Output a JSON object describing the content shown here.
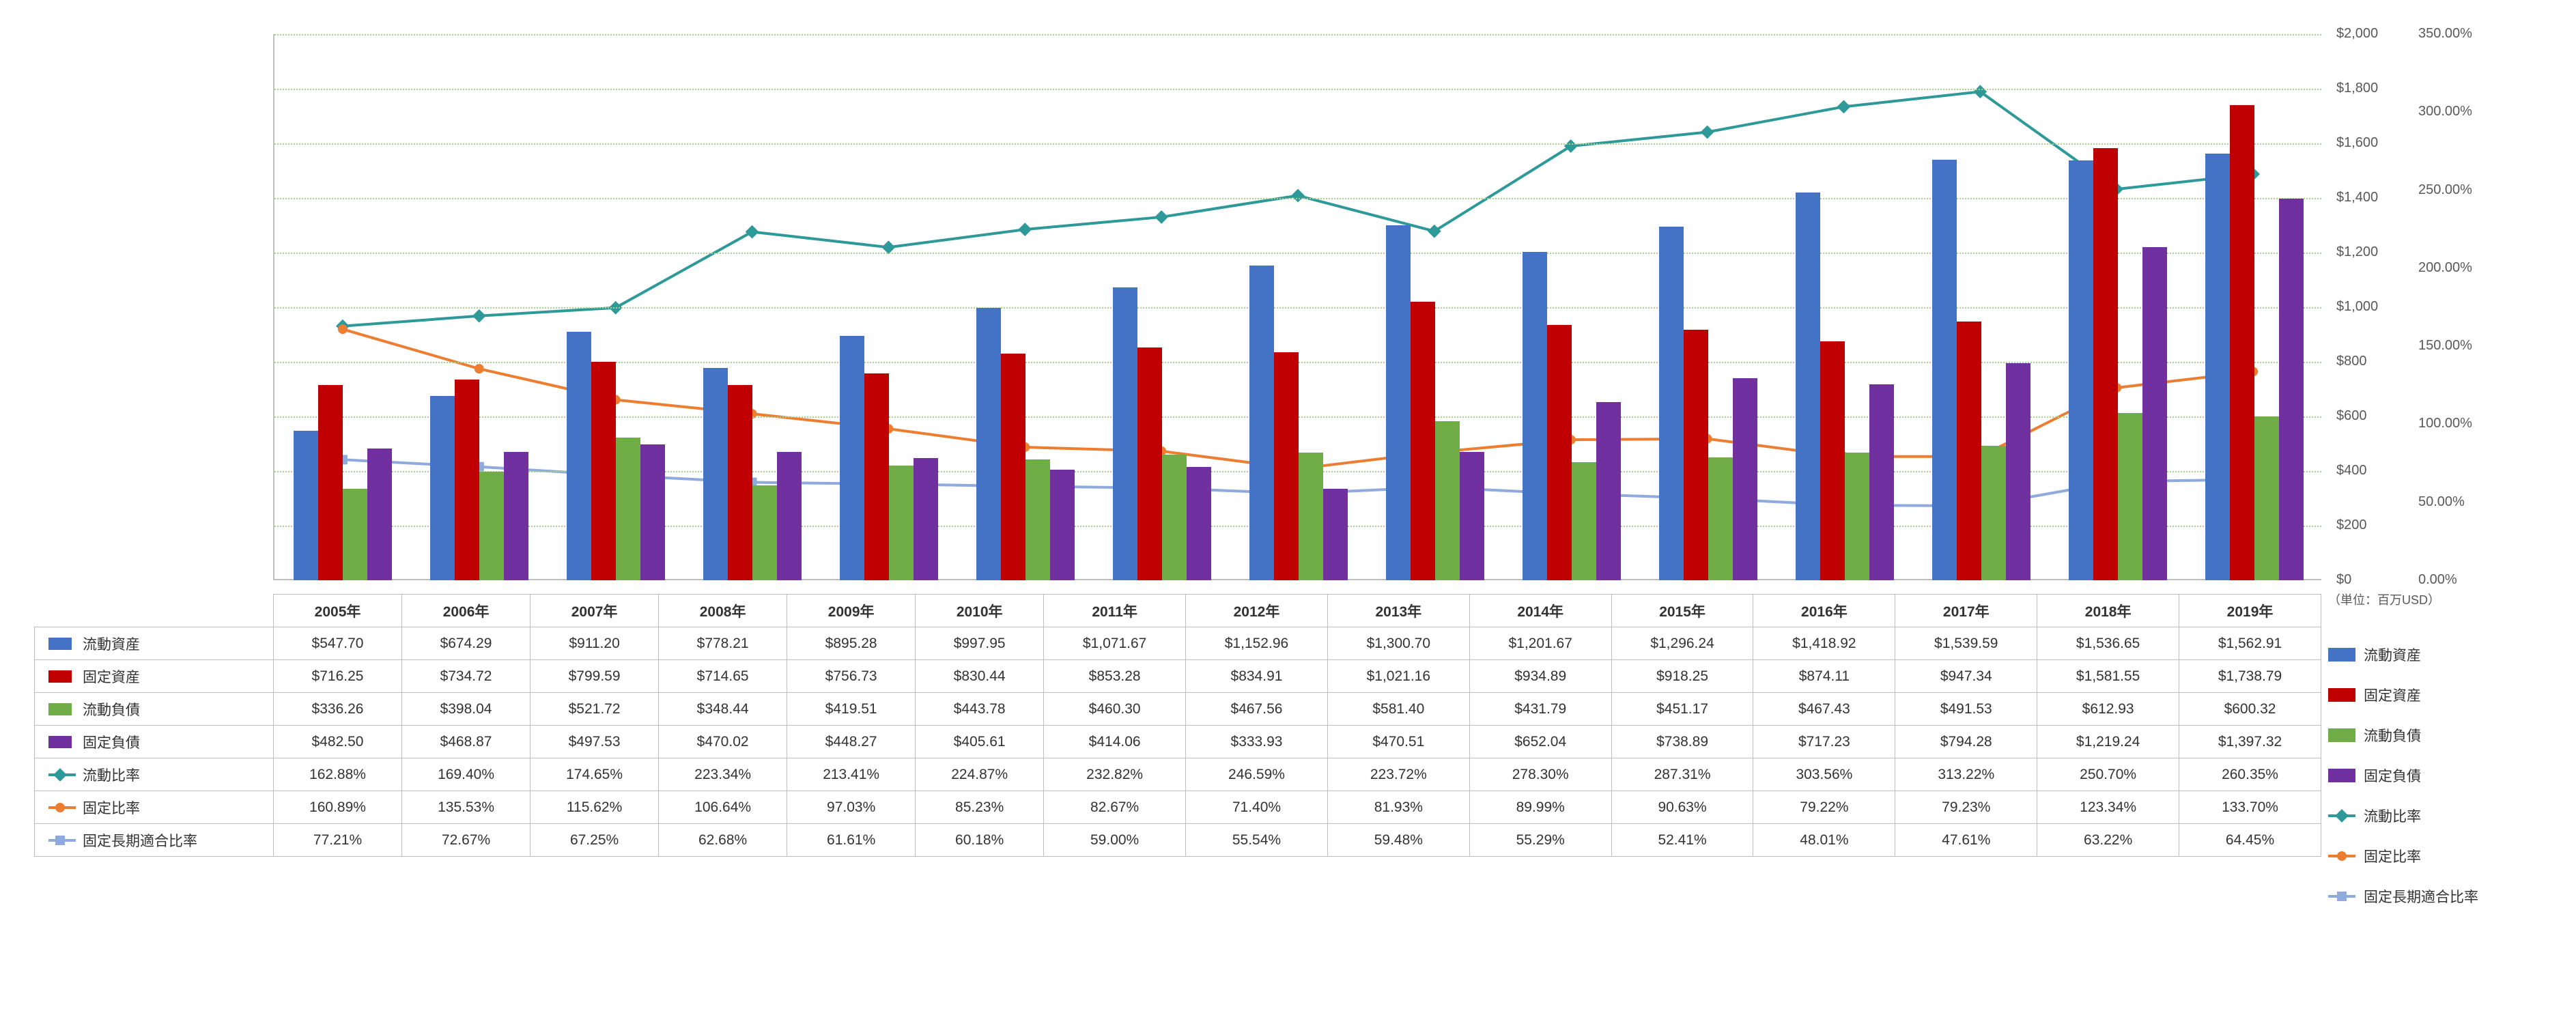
{
  "categories": [
    "2005年",
    "2006年",
    "2007年",
    "2008年",
    "2009年",
    "2010年",
    "2011年",
    "2012年",
    "2013年",
    "2014年",
    "2015年",
    "2016年",
    "2017年",
    "2018年",
    "2019年"
  ],
  "unit_label": "（単位：百万USD）",
  "yleft": {
    "min": 0,
    "max": 2000,
    "step": 200,
    "ticks": [
      "$0",
      "$200",
      "$400",
      "$600",
      "$800",
      "$1,000",
      "$1,200",
      "$1,400",
      "$1,600",
      "$1,800",
      "$2,000"
    ]
  },
  "yright": {
    "min": 0,
    "max": 350,
    "step": 50,
    "ticks": [
      "0.00%",
      "50.00%",
      "100.00%",
      "150.00%",
      "200.00%",
      "250.00%",
      "300.00%",
      "350.00%"
    ]
  },
  "series_bars": [
    {
      "key": "current_assets",
      "label": "流動資産",
      "color": "#4472c4",
      "display": [
        "$547.70",
        "$674.29",
        "$911.20",
        "$778.21",
        "$895.28",
        "$997.95",
        "$1,071.67",
        "$1,152.96",
        "$1,300.70",
        "$1,201.67",
        "$1,296.24",
        "$1,418.92",
        "$1,539.59",
        "$1,536.65",
        "$1,562.91"
      ],
      "values": [
        547.7,
        674.29,
        911.2,
        778.21,
        895.28,
        997.95,
        1071.67,
        1152.96,
        1300.7,
        1201.67,
        1296.24,
        1418.92,
        1539.59,
        1536.65,
        1562.91
      ]
    },
    {
      "key": "fixed_assets",
      "label": "固定資産",
      "color": "#c00000",
      "display": [
        "$716.25",
        "$734.72",
        "$799.59",
        "$714.65",
        "$756.73",
        "$830.44",
        "$853.28",
        "$834.91",
        "$1,021.16",
        "$934.89",
        "$918.25",
        "$874.11",
        "$947.34",
        "$1,581.55",
        "$1,738.79"
      ],
      "values": [
        716.25,
        734.72,
        799.59,
        714.65,
        756.73,
        830.44,
        853.28,
        834.91,
        1021.16,
        934.89,
        918.25,
        874.11,
        947.34,
        1581.55,
        1738.79
      ]
    },
    {
      "key": "current_liab",
      "label": "流動負債",
      "color": "#70ad47",
      "display": [
        "$336.26",
        "$398.04",
        "$521.72",
        "$348.44",
        "$419.51",
        "$443.78",
        "$460.30",
        "$467.56",
        "$581.40",
        "$431.79",
        "$451.17",
        "$467.43",
        "$491.53",
        "$612.93",
        "$600.32"
      ],
      "values": [
        336.26,
        398.04,
        521.72,
        348.44,
        419.51,
        443.78,
        460.3,
        467.56,
        581.4,
        431.79,
        451.17,
        467.43,
        491.53,
        612.93,
        600.32
      ]
    },
    {
      "key": "fixed_liab",
      "label": "固定負債",
      "color": "#7030a0",
      "display": [
        "$482.50",
        "$468.87",
        "$497.53",
        "$470.02",
        "$448.27",
        "$405.61",
        "$414.06",
        "$333.93",
        "$470.51",
        "$652.04",
        "$738.89",
        "$717.23",
        "$794.28",
        "$1,219.24",
        "$1,397.32"
      ],
      "values": [
        482.5,
        468.87,
        497.53,
        470.02,
        448.27,
        405.61,
        414.06,
        333.93,
        470.51,
        652.04,
        738.89,
        717.23,
        794.28,
        1219.24,
        1397.32
      ]
    }
  ],
  "series_lines": [
    {
      "key": "current_ratio",
      "label": "流動比率",
      "color": "#2e9999",
      "marker": "diamond",
      "display": [
        "162.88%",
        "169.40%",
        "174.65%",
        "223.34%",
        "213.41%",
        "224.87%",
        "232.82%",
        "246.59%",
        "223.72%",
        "278.30%",
        "287.31%",
        "303.56%",
        "313.22%",
        "250.70%",
        "260.35%"
      ],
      "values": [
        162.88,
        169.4,
        174.65,
        223.34,
        213.41,
        224.87,
        232.82,
        246.59,
        223.72,
        278.3,
        287.31,
        303.56,
        313.22,
        250.7,
        260.35
      ]
    },
    {
      "key": "fixed_ratio",
      "label": "固定比率",
      "color": "#ed7d31",
      "marker": "circle",
      "display": [
        "160.89%",
        "135.53%",
        "115.62%",
        "106.64%",
        "97.03%",
        "85.23%",
        "82.67%",
        "71.40%",
        "81.93%",
        "89.99%",
        "90.63%",
        "79.22%",
        "79.23%",
        "123.34%",
        "133.70%"
      ],
      "values": [
        160.89,
        135.53,
        115.62,
        106.64,
        97.03,
        85.23,
        82.67,
        71.4,
        81.93,
        89.99,
        90.63,
        79.22,
        79.23,
        123.34,
        133.7
      ]
    },
    {
      "key": "fixed_lt_ratio",
      "label": "固定長期適合比率",
      "color": "#8faadc",
      "marker": "square",
      "display": [
        "77.21%",
        "72.67%",
        "67.25%",
        "62.68%",
        "61.61%",
        "60.18%",
        "59.00%",
        "55.54%",
        "59.48%",
        "55.29%",
        "52.41%",
        "48.01%",
        "47.61%",
        "63.22%",
        "64.45%"
      ],
      "values": [
        77.21,
        72.67,
        67.25,
        62.68,
        61.61,
        60.18,
        59.0,
        55.54,
        59.48,
        55.29,
        52.41,
        48.01,
        47.61,
        63.22,
        64.45
      ]
    }
  ],
  "style": {
    "plot_bg": "#ffffff",
    "grid_color": "#a8d08d",
    "axis_color": "#bfbfbf",
    "bar_group_gap": 0.2,
    "bar_width": 0.18,
    "line_width": 4,
    "marker_size": 14,
    "font_size": 21
  }
}
